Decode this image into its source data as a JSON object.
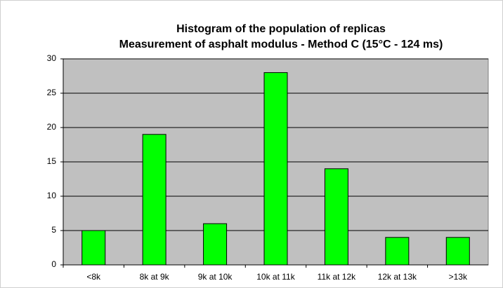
{
  "chart_data": {
    "type": "bar",
    "title": "Histogram of the population of replicas",
    "subtitle": "Measurement of asphalt modulus - Method C (15°C - 124 ms)",
    "categories": [
      "<8k",
      "8k at 9k",
      "9k at 10k",
      "10k at 11k",
      "11k at 12k",
      "12k at 13k",
      ">13k"
    ],
    "values": [
      5,
      19,
      6,
      28,
      14,
      4,
      4
    ],
    "color": "#00ff00",
    "plot_background": "#c0c0c0",
    "ylim": [
      0,
      30
    ],
    "yticks": [
      0,
      5,
      10,
      15,
      20,
      25,
      30
    ],
    "grid": true
  }
}
